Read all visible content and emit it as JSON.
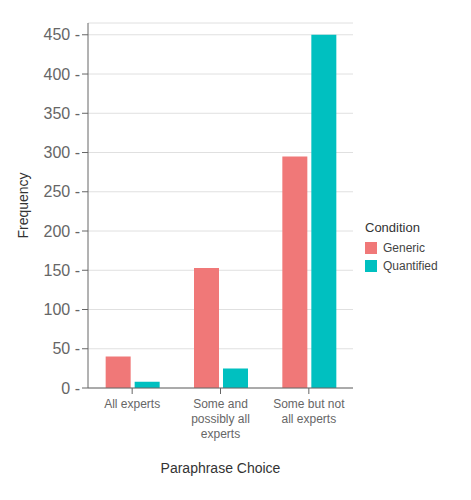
{
  "chart_data": {
    "type": "bar",
    "categories": [
      "All experts",
      "Some and\npossibly all\nexperts",
      "Some but not\nall experts"
    ],
    "series": [
      {
        "name": "Generic",
        "color": "#F07878",
        "values": [
          40,
          153,
          295
        ]
      },
      {
        "name": "Quantified",
        "color": "#00C0C0",
        "values": [
          8,
          25,
          450
        ]
      }
    ],
    "xlabel": "Paraphrase Choice",
    "ylabel": "Frequency",
    "legend_title": "Condition",
    "ylim": [
      0,
      465
    ],
    "yticks": [
      {
        "value": 0,
        "label": "0 -"
      },
      {
        "value": 50,
        "label": "50 -"
      },
      {
        "value": 100,
        "label": "100 -"
      },
      {
        "value": 150,
        "label": "150 -"
      },
      {
        "value": 200,
        "label": "200 -"
      },
      {
        "value": 250,
        "label": "250 -"
      },
      {
        "value": 300,
        "label": "300 -"
      },
      {
        "value": 350,
        "label": "350 -"
      },
      {
        "value": 400,
        "label": "400 -"
      },
      {
        "value": 450,
        "label": "450 -"
      }
    ],
    "grid": true,
    "legend": "right"
  }
}
